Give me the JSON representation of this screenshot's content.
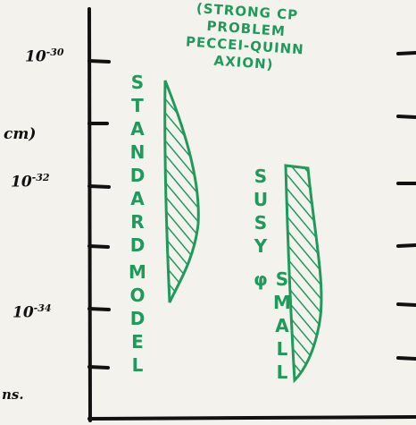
{
  "annotation": [
    "(STRONG CP",
    "PROBLEM",
    "PECCEI-QUINN",
    "AXION)"
  ],
  "axis_labels": [
    {
      "base": "10",
      "exp": "-30"
    },
    {
      "base": "10",
      "exp": "-32"
    },
    {
      "base": "10",
      "exp": "-34"
    }
  ],
  "unit": "cm)",
  "edge_text": "ns.",
  "bands": [
    {
      "label": [
        "STANDARD",
        "MODEL"
      ]
    },
    {
      "label": [
        "SUSY",
        "SMALL φ"
      ]
    }
  ]
}
